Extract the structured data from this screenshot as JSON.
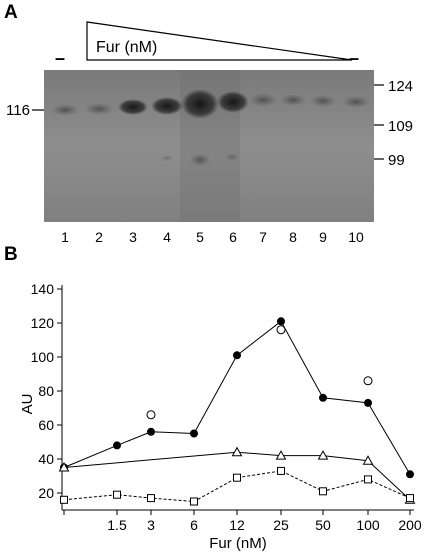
{
  "panel_a": {
    "letter": "A",
    "gradient_label": "Fur (nM)",
    "minus_symbol_left": "–",
    "minus_symbol_right": "–",
    "left_marker": "116",
    "right_markers": [
      "124",
      "109",
      "99"
    ],
    "lane_numbers": [
      "1",
      "2",
      "3",
      "4",
      "5",
      "6",
      "7",
      "8",
      "9",
      "10"
    ]
  },
  "panel_b": {
    "letter": "B"
  },
  "chart_data": {
    "type": "line",
    "xlabel": "Fur (nM)",
    "ylabel": "AU",
    "categories": [
      "",
      "1.5",
      "3",
      "6",
      "12",
      "25",
      "50",
      "100",
      "200"
    ],
    "yticks": [
      20,
      40,
      60,
      80,
      100,
      120,
      140
    ],
    "ylim": [
      10,
      140
    ],
    "grid": false,
    "series": [
      {
        "marker": "filled-circle",
        "line": "solid",
        "values": [
          35,
          48,
          56,
          55,
          101,
          121,
          76,
          73,
          31
        ]
      },
      {
        "marker": "open-circle",
        "line": "none",
        "values": [
          null,
          null,
          66,
          null,
          null,
          116,
          null,
          86,
          null
        ]
      },
      {
        "marker": "open-triangle",
        "line": "solid",
        "values": [
          35,
          null,
          null,
          null,
          44,
          42,
          42,
          39,
          16
        ]
      },
      {
        "marker": "open-square",
        "line": "dashed",
        "values": [
          16,
          19,
          17,
          15,
          29,
          33,
          21,
          28,
          17
        ]
      }
    ]
  }
}
